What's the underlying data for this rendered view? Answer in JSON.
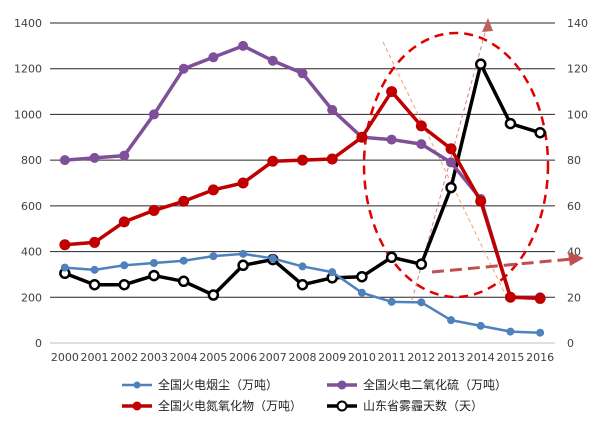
{
  "chart_data": {
    "type": "line",
    "x": [
      "2000",
      "2001",
      "2002",
      "2003",
      "2004",
      "2005",
      "2006",
      "2007",
      "2008",
      "2009",
      "2010",
      "2011",
      "2012",
      "2013",
      "2014",
      "2015",
      "2016"
    ],
    "ylim": [
      0,
      1400
    ],
    "y_ticks": [
      "0",
      "200",
      "400",
      "600",
      "800",
      "1000",
      "1200",
      "1400"
    ],
    "y2lim": [
      0,
      140
    ],
    "y2_ticks": [
      "0",
      "20",
      "40",
      "60",
      "80",
      "100",
      "120",
      "140"
    ],
    "grid": true,
    "legend_position": "bottom",
    "series": [
      {
        "name": "全国火电烟尘（万吨）",
        "axis": "left",
        "color": "#4f81bd",
        "values": [
          330,
          320,
          340,
          350,
          360,
          380,
          390,
          370,
          335,
          310,
          220,
          180,
          178,
          100,
          75,
          50,
          45
        ]
      },
      {
        "name": "全国火电二氧化硫（万吨）",
        "axis": "left",
        "color": "#7f4f9a",
        "values": [
          800,
          810,
          820,
          1000,
          1200,
          1250,
          1300,
          1235,
          1180,
          1020,
          900,
          890,
          870,
          790,
          630,
          200,
          200
        ]
      },
      {
        "name": "全国火电氮氧化物（万吨）",
        "axis": "left",
        "color": "#c00000",
        "values": [
          430,
          440,
          530,
          580,
          620,
          670,
          700,
          795,
          800,
          805,
          900,
          1100,
          950,
          850,
          620,
          200,
          195
        ]
      },
      {
        "name": "山东省雾霾天数（天）",
        "axis": "right",
        "color": "#000000",
        "values": [
          30.5,
          25.5,
          25.5,
          29.5,
          27,
          21,
          34,
          36.5,
          25.5,
          28.5,
          29,
          37.5,
          34.5,
          68,
          122,
          96,
          92
        ]
      }
    ]
  }
}
